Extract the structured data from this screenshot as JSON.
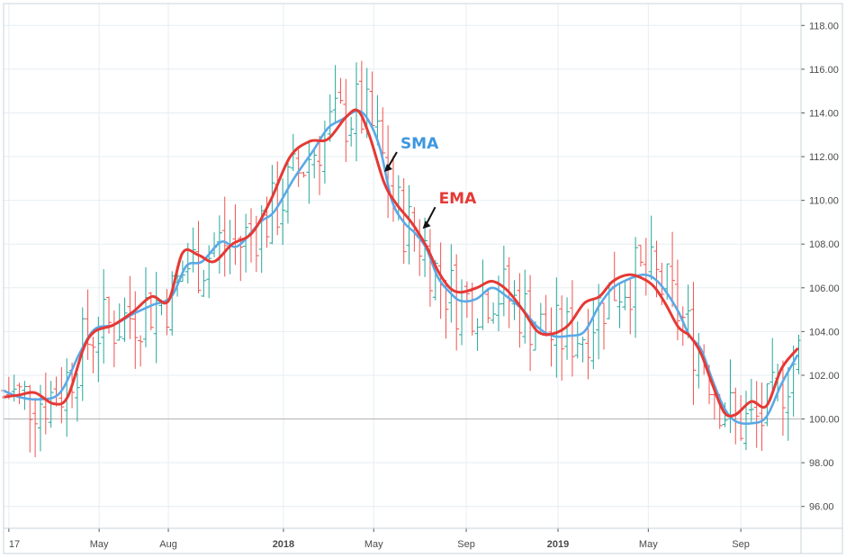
{
  "chart_data": {
    "type": "line",
    "title": "",
    "xlabel": "",
    "ylabel": "",
    "ylim": [
      95,
      119
    ],
    "y_ticks": [
      "96.00",
      "98.00",
      "100.00",
      "102.00",
      "104.00",
      "106.00",
      "108.00",
      "110.00",
      "112.00",
      "114.00",
      "116.00",
      "118.00"
    ],
    "x_ticks": [
      "17",
      "May",
      "Aug",
      "2018",
      "May",
      "Sep",
      "2019",
      "May",
      "Sep"
    ],
    "x_tick_dates": [
      "2017-01-01",
      "2017-05-01",
      "2017-08-01",
      "2018-01-01",
      "2018-05-01",
      "2018-09-01",
      "2019-01-01",
      "2019-05-01",
      "2019-09-01"
    ],
    "x_range": [
      "2016-12-25",
      "2019-11-20"
    ],
    "reference_line": 100,
    "grid": true,
    "colors": {
      "up": "#26a69a",
      "down": "#ef5350",
      "sma": "#5aa9e6",
      "ema": "#e53935",
      "reference": "#b3b3b3"
    },
    "series": [
      {
        "name": "SMA",
        "values": [
          [
            "2016-12-25",
            101.3
          ],
          [
            "2017-01-15",
            101.0
          ],
          [
            "2017-02-10",
            100.9
          ],
          [
            "2017-03-10",
            101.2
          ],
          [
            "2017-04-05",
            103.0
          ],
          [
            "2017-04-25",
            104.1
          ],
          [
            "2017-05-20",
            104.3
          ],
          [
            "2017-06-15",
            104.8
          ],
          [
            "2017-07-10",
            105.2
          ],
          [
            "2017-08-05",
            105.6
          ],
          [
            "2017-08-25",
            107.0
          ],
          [
            "2017-09-15",
            107.2
          ],
          [
            "2017-10-10",
            108.1
          ],
          [
            "2017-11-01",
            107.9
          ],
          [
            "2017-12-01",
            109.0
          ],
          [
            "2017-12-20",
            109.5
          ],
          [
            "2018-01-15",
            111.0
          ],
          [
            "2018-02-10",
            112.3
          ],
          [
            "2018-03-01",
            113.3
          ],
          [
            "2018-03-20",
            113.7
          ],
          [
            "2018-04-10",
            114.1
          ],
          [
            "2018-04-25",
            113.6
          ],
          [
            "2018-05-10",
            112.3
          ],
          [
            "2018-05-25",
            110.0
          ],
          [
            "2018-06-10",
            109.0
          ],
          [
            "2018-06-25",
            108.5
          ],
          [
            "2018-07-10",
            107.8
          ],
          [
            "2018-07-25",
            106.5
          ],
          [
            "2018-08-10",
            105.8
          ],
          [
            "2018-08-25",
            105.4
          ],
          [
            "2018-09-15",
            105.5
          ],
          [
            "2018-10-05",
            106.0
          ],
          [
            "2018-10-25",
            105.6
          ],
          [
            "2018-11-15",
            105.0
          ],
          [
            "2018-12-05",
            104.2
          ],
          [
            "2018-12-25",
            103.8
          ],
          [
            "2019-01-15",
            103.8
          ],
          [
            "2019-02-05",
            104.0
          ],
          [
            "2019-02-25",
            105.2
          ],
          [
            "2019-03-15",
            106.0
          ],
          [
            "2019-04-05",
            106.4
          ],
          [
            "2019-04-25",
            106.6
          ],
          [
            "2019-05-10",
            106.4
          ],
          [
            "2019-05-25",
            105.8
          ],
          [
            "2019-06-10",
            104.9
          ],
          [
            "2019-06-25",
            103.8
          ],
          [
            "2019-07-10",
            103.2
          ],
          [
            "2019-07-25",
            101.8
          ],
          [
            "2019-08-10",
            100.5
          ],
          [
            "2019-08-25",
            99.9
          ],
          [
            "2019-09-15",
            99.8
          ],
          [
            "2019-10-05",
            100.1
          ],
          [
            "2019-10-25",
            101.6
          ],
          [
            "2019-11-15",
            102.9
          ]
        ]
      },
      {
        "name": "EMA",
        "values": [
          [
            "2016-12-25",
            101.0
          ],
          [
            "2017-01-15",
            101.1
          ],
          [
            "2017-02-05",
            101.2
          ],
          [
            "2017-03-01",
            100.7
          ],
          [
            "2017-03-20",
            101.0
          ],
          [
            "2017-04-10",
            103.2
          ],
          [
            "2017-04-25",
            104.0
          ],
          [
            "2017-05-20",
            104.3
          ],
          [
            "2017-06-15",
            104.9
          ],
          [
            "2017-07-10",
            105.6
          ],
          [
            "2017-08-01",
            105.4
          ],
          [
            "2017-08-20",
            107.6
          ],
          [
            "2017-09-10",
            107.5
          ],
          [
            "2017-10-01",
            107.2
          ],
          [
            "2017-10-25",
            108.0
          ],
          [
            "2017-11-20",
            108.5
          ],
          [
            "2017-12-15",
            110.0
          ],
          [
            "2018-01-10",
            112.0
          ],
          [
            "2018-02-05",
            112.7
          ],
          [
            "2018-03-01",
            112.8
          ],
          [
            "2018-03-25",
            113.8
          ],
          [
            "2018-04-10",
            114.1
          ],
          [
            "2018-04-25",
            113.0
          ],
          [
            "2018-05-15",
            110.8
          ],
          [
            "2018-06-01",
            109.8
          ],
          [
            "2018-06-20",
            109.0
          ],
          [
            "2018-07-10",
            107.9
          ],
          [
            "2018-07-25",
            106.8
          ],
          [
            "2018-08-10",
            106.0
          ],
          [
            "2018-08-25",
            105.8
          ],
          [
            "2018-09-15",
            106.0
          ],
          [
            "2018-10-05",
            106.3
          ],
          [
            "2018-10-25",
            105.9
          ],
          [
            "2018-11-15",
            105.0
          ],
          [
            "2018-12-05",
            104.0
          ],
          [
            "2018-12-25",
            103.9
          ],
          [
            "2019-01-15",
            104.3
          ],
          [
            "2019-02-05",
            105.3
          ],
          [
            "2019-02-25",
            105.6
          ],
          [
            "2019-03-15",
            106.3
          ],
          [
            "2019-04-05",
            106.6
          ],
          [
            "2019-04-25",
            106.4
          ],
          [
            "2019-05-10",
            106.0
          ],
          [
            "2019-05-25",
            105.2
          ],
          [
            "2019-06-10",
            104.2
          ],
          [
            "2019-06-25",
            103.8
          ],
          [
            "2019-07-10",
            103.0
          ],
          [
            "2019-07-25",
            101.6
          ],
          [
            "2019-08-10",
            100.3
          ],
          [
            "2019-08-25",
            100.2
          ],
          [
            "2019-09-15",
            100.8
          ],
          [
            "2019-10-05",
            100.6
          ],
          [
            "2019-10-25",
            102.3
          ],
          [
            "2019-11-15",
            103.2
          ]
        ]
      }
    ],
    "annotations": [
      {
        "text": "SMA",
        "color": "#3d97e0",
        "points_to": [
          "2018-05-15",
          111.3
        ]
      },
      {
        "text": "EMA",
        "color": "#e53935",
        "points_to": [
          "2018-07-05",
          108.7
        ]
      }
    ]
  }
}
